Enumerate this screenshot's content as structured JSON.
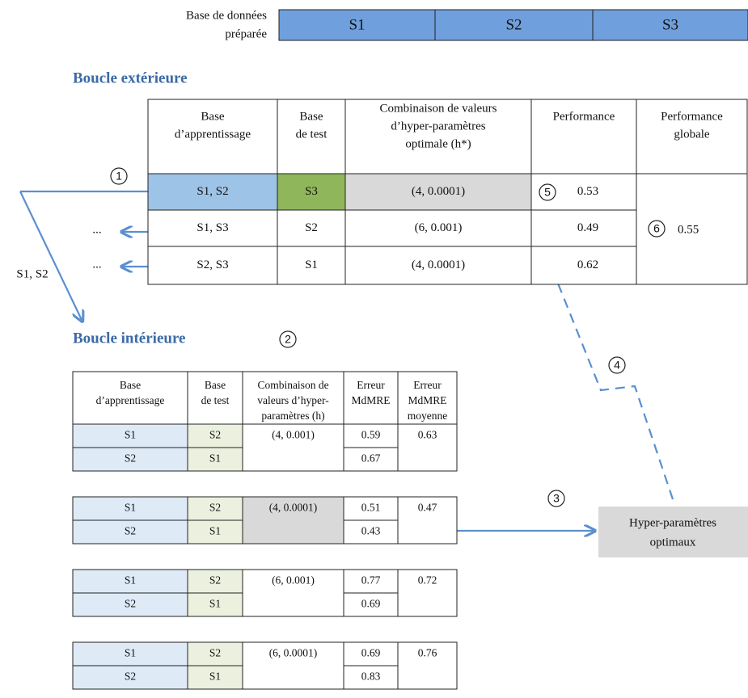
{
  "dataset": {
    "label": [
      "Base de données",
      "préparée"
    ],
    "parts": [
      "S1",
      "S2",
      "S3"
    ]
  },
  "outer": {
    "title": "Boucle extérieure",
    "headers": [
      [
        "Base",
        "d’apprentissage"
      ],
      [
        "Base",
        "de test"
      ],
      [
        "Combinaison de valeurs",
        "d’hyper-paramètres",
        "optimale (h*)"
      ],
      [
        "Performance"
      ],
      [
        "Performance",
        "globale"
      ]
    ],
    "rows": [
      [
        "S1, S2",
        "S3",
        "(4, 0.0001)",
        "0.53"
      ],
      [
        "S1, S3",
        "S2",
        "(6, 0.001)",
        "0.49"
      ],
      [
        "S2, S3",
        "S1",
        "(4, 0.0001)",
        "0.62"
      ]
    ],
    "global": "0.55"
  },
  "inner": {
    "title": "Boucle intérieure",
    "headers": [
      [
        "Base",
        "d’apprentissage"
      ],
      [
        "Base",
        "de test"
      ],
      [
        "Combinaison de",
        "valeurs d’hyper-",
        "paramètres (h)"
      ],
      [
        "Erreur",
        "MdMRE"
      ],
      [
        "Erreur",
        "MdMRE",
        "moyenne"
      ]
    ],
    "groups": [
      {
        "combo": "(4, 0.001)",
        "mean": "0.63",
        "rows": [
          [
            "S1",
            "S2",
            "0.59"
          ],
          [
            "S2",
            "S1",
            "0.67"
          ]
        ]
      },
      {
        "combo": "(4, 0.0001)",
        "mean": "0.47",
        "rows": [
          [
            "S1",
            "S2",
            "0.51"
          ],
          [
            "S2",
            "S1",
            "0.43"
          ]
        ]
      },
      {
        "combo": "(6, 0.001)",
        "mean": "0.72",
        "rows": [
          [
            "S1",
            "S2",
            "0.77"
          ],
          [
            "S2",
            "S1",
            "0.69"
          ]
        ]
      },
      {
        "combo": "(6, 0.0001)",
        "mean": "0.76",
        "rows": [
          [
            "S1",
            "S2",
            "0.69"
          ],
          [
            "S2",
            "S1",
            "0.83"
          ]
        ]
      }
    ]
  },
  "result": [
    "Hyper-paramètres",
    "optimaux"
  ],
  "steps": [
    "1",
    "2",
    "3",
    "4",
    "5",
    "6"
  ],
  "ellipsis": [
    "...",
    "..."
  ],
  "split_label": "S1, S2"
}
